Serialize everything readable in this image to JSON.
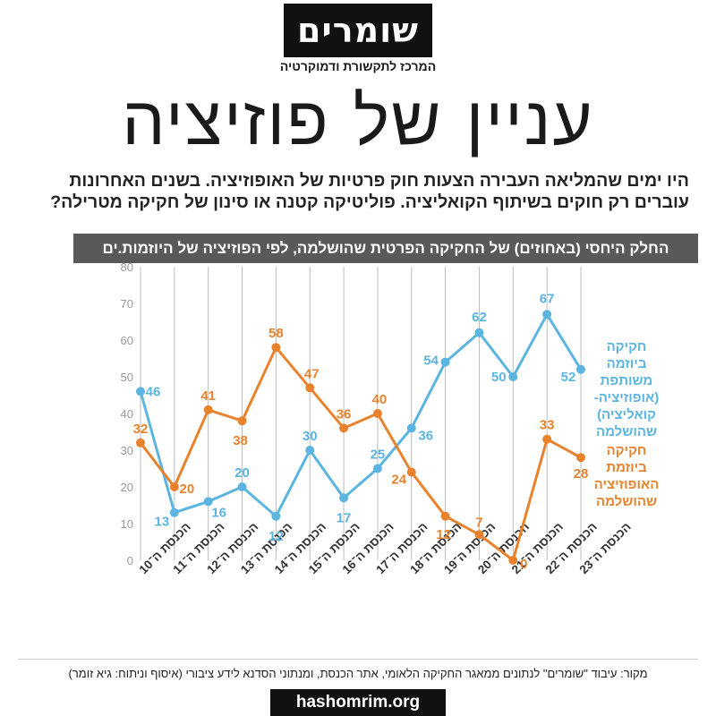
{
  "logo": {
    "name": "שומרים",
    "tagline": "המרכז לתקשורת ודמוקרטיה"
  },
  "headline": "עניין של פוזיציה",
  "intro": "היו ימים שהמליאה העבירה הצעות חוק פרטיות של האופוזיציה. בשנים האחרונות עוברים רק חוקים בשיתוף הקואליציה. פוליטיקה קטנה או סינון של חקיקה מטרילה?",
  "chart_header": "החלק היחסי (באחוזים) של החקיקה הפרטית שהושלמה, לפי הפוזיציה של היוזמות.ים",
  "colors": {
    "blue": "#5bb5e0",
    "orange": "#e8822c",
    "grid": "#bdbdbd",
    "axis_text": "#9a9a9a"
  },
  "chart_data": {
    "type": "line",
    "categories": [
      "הכנסת ה־10",
      "הכנסת ה־11",
      "הכנסת ה־12",
      "הכנסת ה־13",
      "הכנסת ה־14",
      "הכנסת ה־15",
      "הכנסת ה־16",
      "הכנסת ה־17",
      "הכנסת ה־18",
      "הכנסת ה־19",
      "הכנסת ה־20",
      "הכנסת ה־21",
      "הכנסת ה־22",
      "הכנסת ה־23"
    ],
    "ylim": [
      0,
      80
    ],
    "yticks": [
      0,
      10,
      20,
      30,
      40,
      50,
      60,
      70,
      80
    ],
    "grid": "vertical",
    "series": [
      {
        "name": "חקיקה ביוזמה משותפת (אופוזיציה-קואליציה) שהושלמה",
        "legend_lines": [
          "חקיקה",
          "ביוזמה",
          "משותפת",
          "(אופוזיציה-",
          "קואליציה)",
          "שהושלמה"
        ],
        "color": "#5bb5e0",
        "values": [
          46,
          13,
          16,
          20,
          12,
          30,
          17,
          25,
          36,
          54,
          62,
          50,
          67,
          52
        ]
      },
      {
        "name": "חקיקה ביוזמת האופוזיציה שהושלמה",
        "legend_lines": [
          "חקיקה",
          "ביוזמת",
          "האופוזיציה",
          "שהושלמה"
        ],
        "color": "#e8822c",
        "values": [
          32,
          20,
          41,
          38,
          58,
          47,
          36,
          40,
          24,
          12,
          7,
          0,
          33,
          28
        ]
      }
    ]
  },
  "source": "מקור: עיבוד \"שומרים\" לנתונים ממאגר החקיקה הלאומי, אתר הכנסת, ומנתוני הסדנא לידע ציבורי (איסוף וניתוח: גיא זומר)",
  "footer_url": "hashomrim.org"
}
